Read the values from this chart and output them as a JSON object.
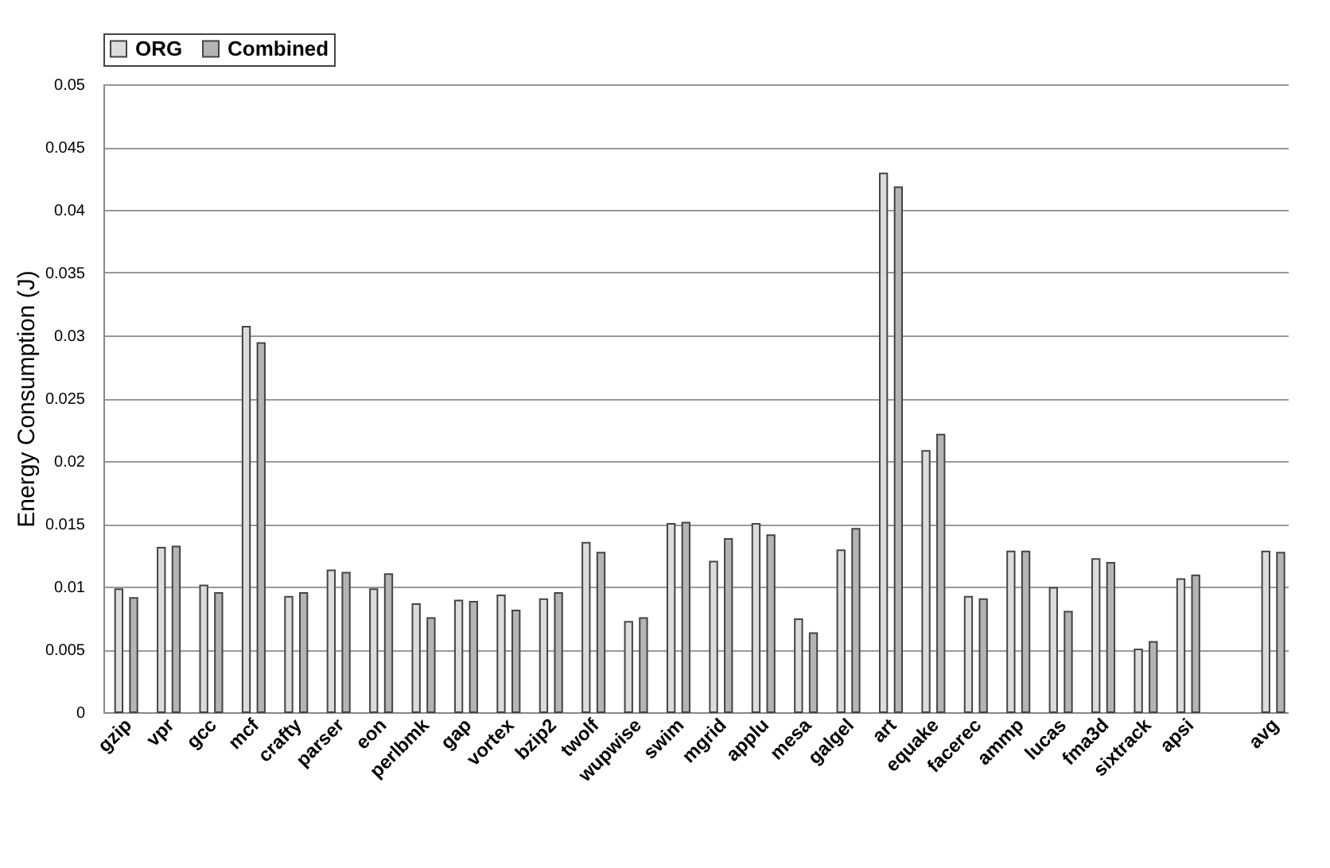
{
  "chart_data": {
    "type": "bar",
    "ylabel": "Energy Consumption (J)",
    "categories": [
      "gzip",
      "vpr",
      "gcc",
      "mcf",
      "crafty",
      "parser",
      "eon",
      "perlbmk",
      "gap",
      "vortex",
      "bzip2",
      "twolf",
      "wupwise",
      "swim",
      "mgrid",
      "applu",
      "mesa",
      "galgel",
      "art",
      "equake",
      "facerec",
      "ammp",
      "lucas",
      "fma3d",
      "sixtrack",
      "apsi",
      null,
      "avg"
    ],
    "series": [
      {
        "name": "ORG",
        "color": "#dcdcdc",
        "values": [
          0.0098,
          0.0131,
          0.0101,
          0.0307,
          0.0092,
          0.0113,
          0.0098,
          0.0086,
          0.0089,
          0.0093,
          0.009,
          0.0135,
          0.0072,
          0.015,
          0.012,
          0.015,
          0.0074,
          0.0129,
          0.0429,
          0.0208,
          0.0092,
          0.0128,
          0.0099,
          0.0122,
          0.005,
          0.0106,
          null,
          0.0128
        ]
      },
      {
        "name": "Combined",
        "color": "#b4b4b4",
        "values": [
          0.0091,
          0.0132,
          0.0095,
          0.0294,
          0.0095,
          0.0111,
          0.011,
          0.0075,
          0.0088,
          0.0081,
          0.0095,
          0.0127,
          0.0075,
          0.0151,
          0.0138,
          0.0141,
          0.0063,
          0.0146,
          0.0418,
          0.0221,
          0.009,
          0.0128,
          0.008,
          0.0119,
          0.0056,
          0.0109,
          null,
          0.0127
        ]
      }
    ],
    "ylim": [
      0,
      0.05
    ],
    "yticks": [
      0,
      0.005,
      0.01,
      0.015,
      0.02,
      0.025,
      0.03,
      0.035,
      0.04,
      0.045,
      0.05
    ],
    "grid": "y",
    "legend": "top"
  }
}
